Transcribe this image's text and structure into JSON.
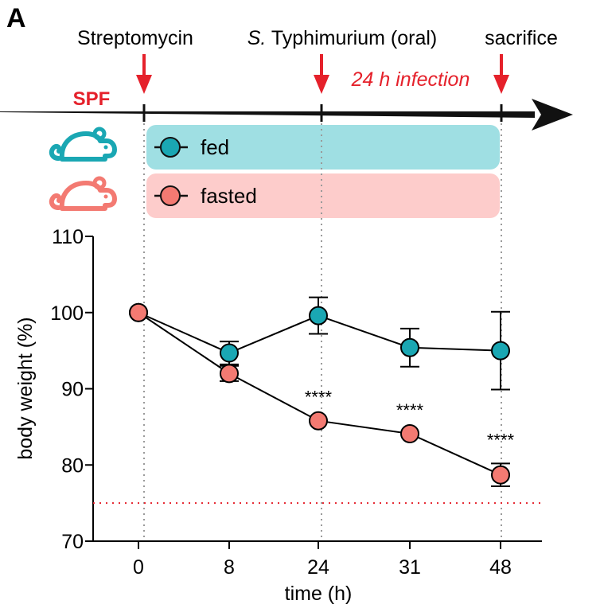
{
  "panel_label": "A",
  "timeline": {
    "group": "SPF",
    "events": [
      {
        "label": "Streptomycin",
        "time": 0
      },
      {
        "label_italic": "S.",
        "label": "Typhimurium (oral)",
        "time": 24
      },
      {
        "label": "sacrifice",
        "time": 48
      }
    ],
    "infection_label": "24 h infection"
  },
  "legend": [
    {
      "label": "fed",
      "color": "#1aa7b3",
      "band": "#9fdfe3"
    },
    {
      "label": "fasted",
      "color": "#f37a72",
      "band": "#fdcccb"
    }
  ],
  "colors": {
    "accent_red": "#e5212b",
    "fed": "#1aa7b3",
    "fasted": "#f37a72"
  },
  "chart_data": {
    "type": "line",
    "title": "",
    "xlabel": "time (h)",
    "ylabel": "body weight (%)",
    "categories": [
      "0",
      "8",
      "24",
      "31",
      "48"
    ],
    "ylim": [
      70,
      110
    ],
    "yticks": [
      "70",
      "80",
      "90",
      "100",
      "110"
    ],
    "threshold": 75,
    "series": [
      {
        "name": "fed",
        "values": [
          100,
          94.7,
          99.6,
          95.4,
          95.0
        ],
        "error": [
          0,
          1.5,
          2.4,
          2.5,
          5.1
        ],
        "significance": [
          "",
          "",
          "",
          "",
          ""
        ]
      },
      {
        "name": "fasted",
        "values": [
          100,
          92.0,
          85.8,
          84.1,
          78.7
        ],
        "error": [
          0,
          1.0,
          0,
          0,
          1.5
        ],
        "significance": [
          "",
          "",
          "****",
          "****",
          "****"
        ]
      }
    ]
  }
}
